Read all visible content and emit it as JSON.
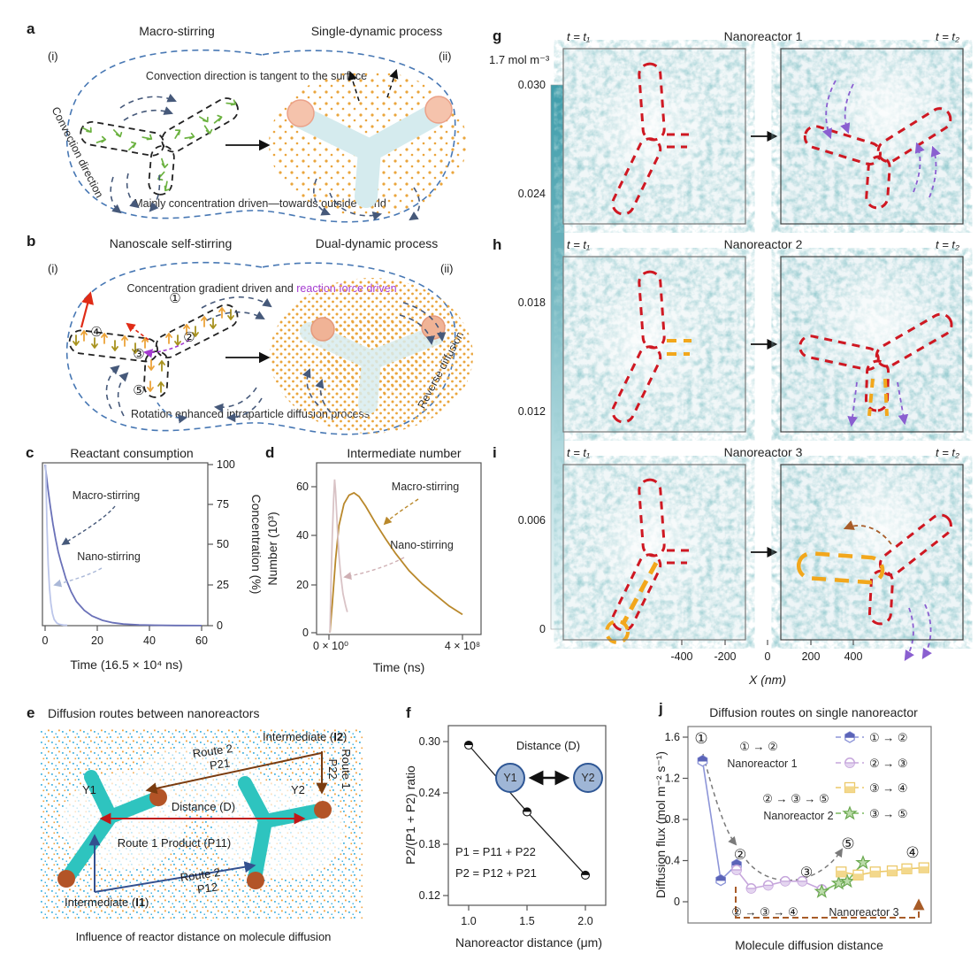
{
  "a": {
    "label": "a",
    "title_left": "Macro-stirring",
    "title_right": "Single-dynamic process",
    "i": "(i)",
    "ii": "(ii)",
    "top": "Convection direction is tangent to the surface",
    "bottom": "Mainly concentration driven—towards outside world",
    "side": "Convection direction"
  },
  "b": {
    "label": "b",
    "title_left": "Nanoscale self-stirring",
    "title_right": "Dual-dynamic process",
    "i": "(i)",
    "ii": "(ii)",
    "top_black": "Concentration gradient driven and ",
    "top_purple": "reaction force driven",
    "bottom": "Rotation enhanced intraparticle diffusion process",
    "side": "Reverse diffusion",
    "n1": "①",
    "n2": "②",
    "n3": "③",
    "n4": "④",
    "n5": "⑤"
  },
  "e": {
    "label": "e",
    "title": "Diffusion routes between nanoreactors",
    "caption": "Influence of reactor distance on molecule diffusion",
    "route2_top": "Route 2",
    "p21": "P21",
    "i2_pre": "Intermediate (",
    "i2_code": "I2",
    "close": ")",
    "route1_right": "Route 1",
    "p22": "P22",
    "y1": "Y1",
    "y2": "Y2",
    "distance": "Distance (D)",
    "route1_label": "Route 1 Product (P11)",
    "route2_bottom": "Route 2",
    "p12": "P12",
    "i1_pre": "Intermediate (",
    "i1_code": "I1"
  },
  "ghi": {
    "label_g": "g",
    "label_h": "h",
    "label_i": "i",
    "cbar_max": "1.7 mol m⁻³",
    "cbar_ticks": [
      "0.030",
      "0.024",
      "0.018",
      "0.012",
      "0.006",
      "0"
    ],
    "t1": "t = t₁",
    "t2": "t = t₂",
    "r1": "Nanoreactor 1",
    "r2": "Nanoreactor 2",
    "r3": "Nanoreactor 3",
    "x_ticks": [
      "-400",
      "-200",
      "0",
      "200",
      "400"
    ],
    "xlabel": "X (nm)"
  },
  "labels": {
    "c": "c",
    "d": "d",
    "f": "f",
    "j": "j"
  },
  "chart_data": [
    {
      "id": "c",
      "type": "line",
      "title": "Reactant consumption",
      "xlabel": "Time (16.5 × 10⁴ ns)",
      "ylabel": "Concentration (%)",
      "xlim": [
        0,
        60
      ],
      "ylim": [
        0,
        100
      ],
      "x_ticks": [
        "0",
        "20",
        "40",
        "60"
      ],
      "y_ticks": [
        "100",
        "75",
        "50",
        "25",
        "0"
      ],
      "legend_position": "in-plot arrows",
      "series": [
        {
          "name": "Macro-stirring",
          "color": "#6a71b8",
          "points": [
            [
              0,
              100
            ],
            [
              1,
              86
            ],
            [
              2,
              74
            ],
            [
              3,
              63
            ],
            [
              4,
              54
            ],
            [
              5,
              46
            ],
            [
              6,
              40
            ],
            [
              8,
              29
            ],
            [
              10,
              21
            ],
            [
              12,
              15
            ],
            [
              15,
              9.5
            ],
            [
              18,
              6
            ],
            [
              22,
              3.3
            ],
            [
              26,
              1.8
            ],
            [
              30,
              1
            ],
            [
              36,
              0.5
            ],
            [
              42,
              0.25
            ],
            [
              50,
              0.12
            ],
            [
              60,
              0.05
            ]
          ]
        },
        {
          "name": "Nano-stirring",
          "color": "#bcc6ea",
          "points": [
            [
              0.2,
              100
            ],
            [
              0.7,
              62
            ],
            [
              1.2,
              38
            ],
            [
              1.7,
              23
            ],
            [
              2.2,
              14
            ],
            [
              2.8,
              7.5
            ],
            [
              3.5,
              3.8
            ],
            [
              4.5,
              1.6
            ],
            [
              5.5,
              0.8
            ],
            [
              7,
              0.4
            ],
            [
              8.5,
              0.3
            ]
          ]
        }
      ]
    },
    {
      "id": "d",
      "type": "line",
      "title": "Intermediate number",
      "xlabel": "Time (ns)",
      "ylabel": "Number (10³)",
      "x_unit_note": "x values in 10⁸ ns",
      "xlim": [
        0,
        4
      ],
      "ylim": [
        0,
        65
      ],
      "x_ticks": [
        "0 × 10⁰",
        "4 × 10⁸"
      ],
      "y_ticks": [
        "60",
        "40",
        "20",
        "0"
      ],
      "series": [
        {
          "name": "Macro-stirring",
          "color": "#b9882b",
          "points": [
            [
              0.03,
              0
            ],
            [
              0.1,
              12
            ],
            [
              0.2,
              30
            ],
            [
              0.3,
              44
            ],
            [
              0.45,
              53
            ],
            [
              0.6,
              56.5
            ],
            [
              0.75,
              57.5
            ],
            [
              0.9,
              56
            ],
            [
              1.1,
              52
            ],
            [
              1.4,
              45
            ],
            [
              1.7,
              38.5
            ],
            [
              2,
              32.5
            ],
            [
              2.4,
              25.5
            ],
            [
              2.8,
              20
            ],
            [
              3.2,
              15.5
            ],
            [
              3.6,
              11
            ],
            [
              4,
              7.5
            ]
          ]
        },
        {
          "name": "Nano-stirring",
          "color": "#d9c3c6",
          "points": [
            [
              0.03,
              0
            ],
            [
              0.06,
              20
            ],
            [
              0.1,
              40
            ],
            [
              0.14,
              55
            ],
            [
              0.17,
              63
            ],
            [
              0.2,
              58
            ],
            [
              0.25,
              44
            ],
            [
              0.3,
              32
            ],
            [
              0.35,
              24
            ],
            [
              0.42,
              16
            ],
            [
              0.5,
              11
            ],
            [
              0.55,
              8.5
            ]
          ]
        }
      ]
    },
    {
      "id": "f",
      "type": "scatter-line",
      "xlabel": "Nanoreactor distance (μm)",
      "ylabel": "P2/(P1 + P2) ratio",
      "x_ticks": [
        "1.0",
        "1.5",
        "2.0"
      ],
      "y_ticks": [
        "0.30",
        "0.24",
        "0.18",
        "0.12"
      ],
      "xlim": [
        0.85,
        2.15
      ],
      "ylim": [
        0.1,
        0.33
      ],
      "points": [
        [
          1.0,
          0.3
        ],
        [
          1.5,
          0.222
        ],
        [
          2.0,
          0.148
        ]
      ],
      "inset": {
        "title": "Distance (D)",
        "left": "Y1",
        "right": "Y2"
      },
      "eq1": "P1 = P11 + P22",
      "eq2": "P2 = P12 + P21"
    },
    {
      "id": "j",
      "type": "line-scatter",
      "title": "Diffusion routes on single nanoreactor",
      "xlabel": "Molecule diffusion distance",
      "ylabel": "Diffusion flux (mol m⁻² s⁻¹)",
      "y_ticks": [
        "1.6",
        "1.2",
        "0.8",
        "0.4",
        "0"
      ],
      "ylim": [
        0,
        1.75
      ],
      "x_note": "x normalized 0–1, no tick labels shown",
      "series": [
        {
          "name": "① → ②",
          "marker": "hexagon",
          "color": "#8d95d8",
          "points": [
            [
              0.06,
              1.37
            ],
            [
              0.135,
              0.21
            ],
            [
              0.2,
              0.36
            ]
          ]
        },
        {
          "name": "② → ③",
          "marker": "circle",
          "color": "#c6a6dc",
          "points": [
            [
              0.2,
              0.31
            ],
            [
              0.26,
              0.13
            ],
            [
              0.33,
              0.16
            ],
            [
              0.4,
              0.2
            ],
            [
              0.47,
              0.2
            ],
            [
              0.55,
              0.12
            ]
          ]
        },
        {
          "name": "③ → ④",
          "marker": "square",
          "color": "#ecc96a",
          "points": [
            [
              0.63,
              0.29
            ],
            [
              0.7,
              0.26
            ],
            [
              0.77,
              0.29
            ],
            [
              0.84,
              0.3
            ],
            [
              0.9,
              0.32
            ],
            [
              0.97,
              0.33
            ]
          ]
        },
        {
          "name": "③ → ⑤",
          "marker": "star",
          "color": "#7ab95e",
          "points": [
            [
              0.55,
              0.1
            ],
            [
              0.62,
              0.18
            ],
            [
              0.655,
              0.2
            ],
            [
              0.72,
              0.38
            ]
          ]
        }
      ],
      "annotations": {
        "big1": "①",
        "c2": "②",
        "c3": "③",
        "c4": "④",
        "c5": "⑤",
        "route1": "① → ②",
        "r1name": "Nanoreactor 1",
        "route2": "② → ③ → ⑤",
        "r2name": "Nanoreactor 2",
        "route3": "② → ③ → ④",
        "r3name": "Nanoreactor 3"
      }
    }
  ]
}
